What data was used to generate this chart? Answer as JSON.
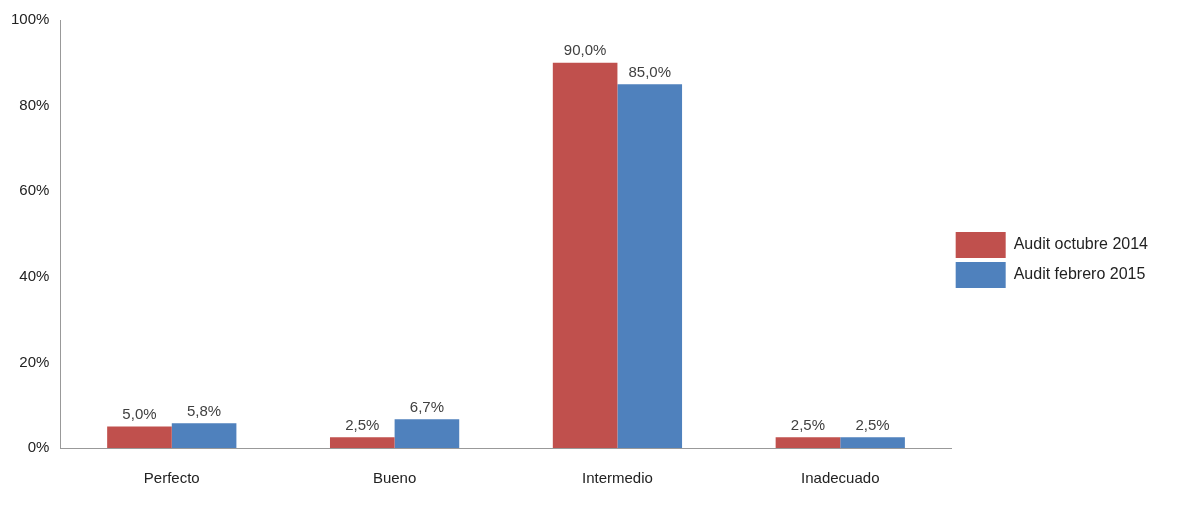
{
  "chart_data": {
    "type": "bar",
    "categories": [
      "Perfecto",
      "Bueno",
      "Intermedio",
      "Inadecuado"
    ],
    "series": [
      {
        "name": "Audit octubre 2014",
        "color": "#c0504d",
        "values": [
          5.0,
          2.5,
          90.0,
          2.5
        ],
        "value_labels": [
          "5,0%",
          "2,5%",
          "90,0%",
          "2,5%"
        ]
      },
      {
        "name": "Audit febrero 2015",
        "color": "#4f81bd",
        "values": [
          5.8,
          6.7,
          85.0,
          2.5
        ],
        "value_labels": [
          "5,8%",
          "6,7%",
          "85,0%",
          "2,5%"
        ]
      }
    ],
    "ylim": [
      0,
      100
    ],
    "yticks": [
      {
        "value": 0,
        "label": "0%"
      },
      {
        "value": 20,
        "label": "20%"
      },
      {
        "value": 40,
        "label": "40%"
      },
      {
        "value": 60,
        "label": "60%"
      },
      {
        "value": 80,
        "label": "80%"
      },
      {
        "value": 100,
        "label": "100%"
      }
    ],
    "grid": false,
    "legend": "right"
  }
}
